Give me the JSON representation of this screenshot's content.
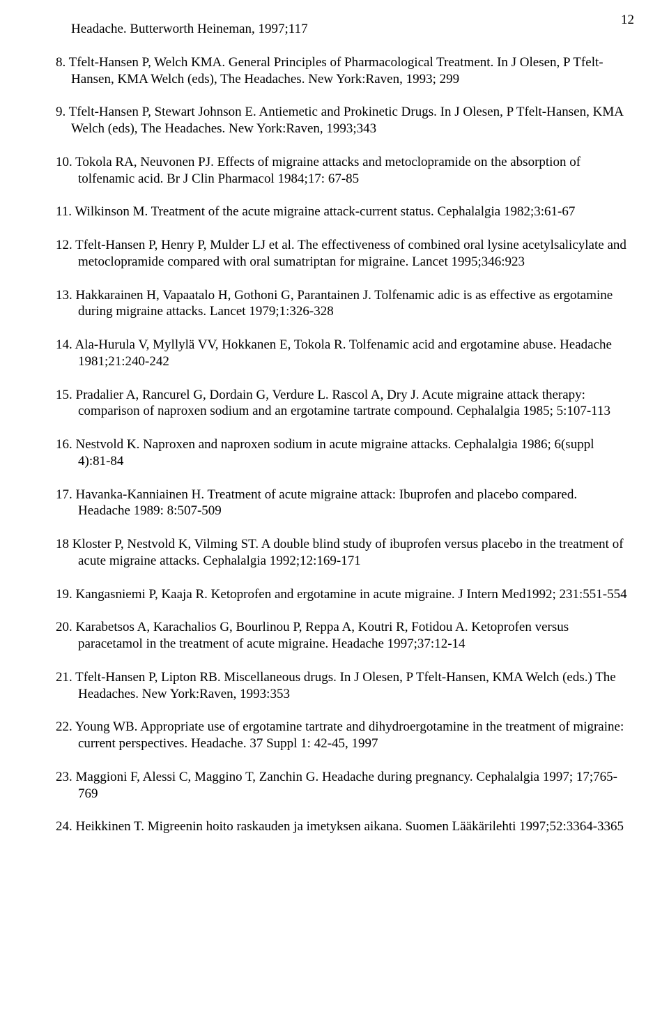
{
  "page_number": "12",
  "refs": [
    {
      "k": "first",
      "text": "Headache. Butterworth Heineman, 1997;117"
    },
    {
      "k": "n8",
      "text": "8. Tfelt-Hansen P, Welch KMA.  General Principles of Pharmacological Treatment.  In J Olesen, P Tfelt-Hansen, KMA Welch (eds), The Headaches.  New York:Raven, 1993; 299"
    },
    {
      "k": "n9",
      "text": "9. Tfelt-Hansen P, Stewart Johnson E.  Antiemetic and Prokinetic Drugs.  In J Olesen, P Tfelt-Hansen, KMA Welch (eds), The Headaches.  New York:Raven, 1993;343"
    },
    {
      "k": "n10",
      "text": "10. Tokola RA, Neuvonen PJ.  Effects of migraine attacks and metoclopramide on the absorption of  tolfenamic acid. Br J Clin Pharmacol 1984;17: 67-85"
    },
    {
      "k": "n11",
      "text": "11. Wilkinson M. Treatment of the acute migraine attack-current status. Cephalalgia 1982;3:61-67"
    },
    {
      "k": "n2",
      "text": "12. Tfelt-Hansen P, Henry P, Mulder LJ et al.  The effectiveness of combined oral lysine acetylsalicylate and metoclopramide compared with oral sumatriptan for migraine. Lancet 1995;346:923"
    },
    {
      "k": "n2",
      "text": "13. Hakkarainen H, Vapaatalo H, Gothoni G, Parantainen J. Tolfenamic adic is as effective as ergotamine during migraine attacks. Lancet 1979;1:326-328"
    },
    {
      "k": "n2",
      "text": "14. Ala-Hurula V, Myllylä VV, Hokkanen E, Tokola R.  Tolfenamic acid and ergotamine abuse. Headache 1981;21:240-242"
    },
    {
      "k": "n2",
      "text": "15. Pradalier A, Rancurel G, Dordain G, Verdure L. Rascol A, Dry J.  Acute migraine attack therapy: comparison of naproxen sodium and an ergotamine tartrate compound.  Cephalalgia 1985; 5:107-113"
    },
    {
      "k": "n2",
      "text": "16. Nestvold K.  Naproxen and naproxen sodium in acute migraine attacks.  Cephalalgia 1986; 6(suppl 4):81-84"
    },
    {
      "k": "n2",
      "text": "17. Havanka-Kanniainen H.  Treatment of acute migraine attack: Ibuprofen and placebo compared. Headache 1989: 8:507-509"
    },
    {
      "k": "n2",
      "text": "18 Kloster P, Nestvold K, Vilming ST. A double blind study of ibuprofen versus placebo in the treatment of acute migraine attacks.  Cephalalgia 1992;12:169-171"
    },
    {
      "k": "n2",
      "text": "19. Kangasniemi P, Kaaja R.  Ketoprofen and ergotamine in acute migraine. J Intern Med1992; 231:551-554"
    },
    {
      "k": "n2",
      "text": "20. Karabetsos A, Karachalios G, Bourlinou P, Reppa A, Koutri R, Fotidou A.  Ketoprofen versus paracetamol in the treatment of acute migraine.  Headache 1997;37:12-14"
    },
    {
      "k": "n2",
      "text": "21. Tfelt-Hansen P, Lipton RB.  Miscellaneous drugs. In J Olesen, P Tfelt-Hansen, KMA Welch (eds.) The Headaches.  New York:Raven, 1993:353"
    },
    {
      "k": "n2",
      "text": "22. Young WB.  Appropriate use of ergotamine tartrate and dihydroergotamine in the treatment of migraine: current perspectives.  Headache. 37 Suppl 1: 42-45, 1997"
    },
    {
      "k": "n2",
      "text": "23.  Maggioni F, Alessi C, Maggino T, Zanchin G.  Headache during pregnancy.  Cephalalgia 1997; 17;765-769"
    },
    {
      "k": "n2",
      "text": "24. Heikkinen T.  Migreenin hoito raskauden ja imetyksen aikana.  Suomen Lääkärilehti 1997;52:3364-3365"
    }
  ]
}
